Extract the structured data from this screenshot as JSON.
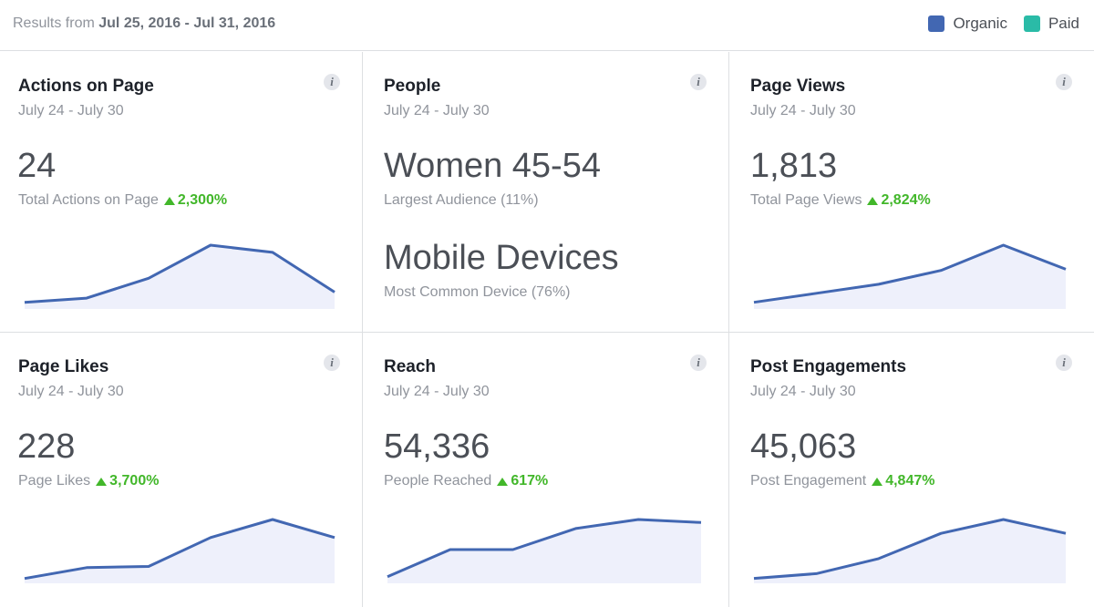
{
  "header": {
    "results_prefix": "Results from",
    "results_range": "Jul 25, 2016 - Jul 31, 2016",
    "legend": [
      {
        "label": "Organic",
        "color": "#4267b2"
      },
      {
        "label": "Paid",
        "color": "#2abba7"
      }
    ]
  },
  "cards": {
    "actions": {
      "title": "Actions on Page",
      "date": "July 24 - July 30",
      "value": "24",
      "label": "Total Actions on Page",
      "change": "2,300%",
      "trend": [
        0.05,
        0.12,
        0.45,
        1.0,
        0.88,
        0.22
      ]
    },
    "people": {
      "title": "People",
      "date": "July 24 - July 30",
      "audience": "Women 45-54",
      "audience_label": "Largest Audience (11%)",
      "device": "Mobile Devices",
      "device_label": "Most Common Device (76%)"
    },
    "views": {
      "title": "Page Views",
      "date": "July 24 - July 30",
      "value": "1,813",
      "label": "Total Page Views",
      "change": "2,824%",
      "trend": [
        0.05,
        0.2,
        0.35,
        0.58,
        1.0,
        0.6
      ]
    },
    "likes": {
      "title": "Page Likes",
      "date": "July 24 - July 30",
      "value": "228",
      "label": "Page Likes",
      "change": "3,700%",
      "trend": [
        0.02,
        0.2,
        0.22,
        0.7,
        1.0,
        0.7
      ]
    },
    "reach": {
      "title": "Reach",
      "date": "July 24 - July 30",
      "value": "54,336",
      "label": "People Reached",
      "change": "617%",
      "trend": [
        0.05,
        0.5,
        0.5,
        0.85,
        1.0,
        0.95
      ]
    },
    "engagements": {
      "title": "Post Engagements",
      "date": "July 24 - July 30",
      "value": "45,063",
      "label": "Post Engagement",
      "change": "4,847%",
      "trend": [
        0.02,
        0.1,
        0.35,
        0.77,
        1.0,
        0.77
      ]
    }
  },
  "colors": {
    "line": "#4267b2",
    "fill": "#eef0fb",
    "positive": "#42b72a"
  },
  "icons": {
    "info": "i"
  }
}
